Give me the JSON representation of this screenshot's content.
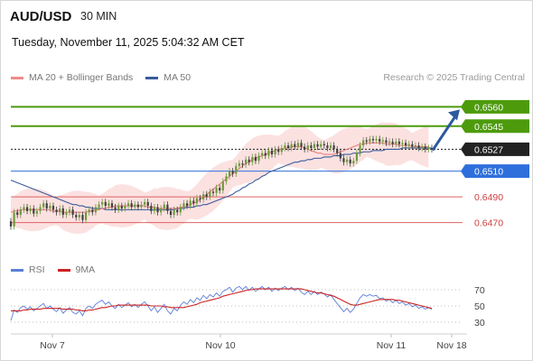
{
  "header": {
    "pair": "AUD/USD",
    "timeframe": "30 MIN",
    "datetime": "Tuesday, November 11, 2025 5:04:32 AM CET"
  },
  "legend": {
    "ma_bb": "MA 20 + Bollinger Bands",
    "ma50": "MA 50",
    "research": "Research © 2025 Trading Central"
  },
  "colors": {
    "resistance": "#4d9b0d",
    "support": "#2f6fdc",
    "minor": "#e06060",
    "current": "#222222",
    "bb_fill": "#fbdcdc",
    "ma20": "#e98080",
    "ma50": "#3a5b9c",
    "bull": "#6c9b3a",
    "bear": "#3f3f3f",
    "rsi": "#5b7fd8",
    "rsi_ma": "#cc2222",
    "arrow": "#2c5aa0"
  },
  "chart_data": [
    {
      "type": "candlestick",
      "ylim": [
        0.6455,
        0.6575
      ],
      "x_ticks": [
        "Nov 7",
        "Nov 10",
        "Nov 11",
        "Nov 18"
      ],
      "levels": [
        {
          "value": 0.656,
          "label": "0.6560",
          "kind": "resistance"
        },
        {
          "value": 0.6545,
          "label": "0.6545",
          "kind": "resistance"
        },
        {
          "value": 0.6527,
          "label": "0.6527",
          "kind": "current"
        },
        {
          "value": 0.651,
          "label": "0.6510",
          "kind": "support"
        },
        {
          "value": 0.649,
          "label": "0.6490",
          "kind": "minor"
        },
        {
          "value": 0.647,
          "label": "0.6470",
          "kind": "minor"
        }
      ],
      "close": [
        0.6467,
        0.6478,
        0.6476,
        0.648,
        0.6482,
        0.6479,
        0.6481,
        0.6477,
        0.6479,
        0.6482,
        0.6485,
        0.6481,
        0.6483,
        0.648,
        0.6478,
        0.6481,
        0.6476,
        0.6478,
        0.648,
        0.6476,
        0.6474,
        0.6476,
        0.6472,
        0.6478,
        0.648,
        0.6478,
        0.6482,
        0.6484,
        0.6486,
        0.6483,
        0.6485,
        0.6482,
        0.648,
        0.6483,
        0.6481,
        0.6483,
        0.6485,
        0.6482,
        0.6484,
        0.6482,
        0.6484,
        0.6486,
        0.6483,
        0.6479,
        0.6482,
        0.6478,
        0.6481,
        0.6484,
        0.6479,
        0.6476,
        0.648,
        0.6478,
        0.6482,
        0.6485,
        0.6483,
        0.6487,
        0.6485,
        0.6489,
        0.6488,
        0.6492,
        0.649,
        0.6494,
        0.6493,
        0.6497,
        0.6495,
        0.6502,
        0.6506,
        0.651,
        0.6508,
        0.6514,
        0.6516,
        0.6515,
        0.6519,
        0.6517,
        0.6521,
        0.6518,
        0.6522,
        0.6524,
        0.6522,
        0.6526,
        0.6523,
        0.6527,
        0.6525,
        0.6528,
        0.653,
        0.6528,
        0.6531,
        0.6529,
        0.6532,
        0.6529,
        0.6527,
        0.653,
        0.6528,
        0.6531,
        0.6529,
        0.6531,
        0.653,
        0.6528,
        0.653,
        0.6527,
        0.6524,
        0.652,
        0.6517,
        0.6519,
        0.6516,
        0.6518,
        0.6524,
        0.653,
        0.6534,
        0.6533,
        0.6535,
        0.6534,
        0.6535,
        0.6533,
        0.6534,
        0.6532,
        0.6533,
        0.6531,
        0.6533,
        0.6531,
        0.6532,
        0.653,
        0.6531,
        0.6529,
        0.653,
        0.6528,
        0.6529,
        0.6527,
        0.6528,
        0.6527
      ],
      "ma20": [
        0.6478,
        0.6479,
        0.6479,
        0.648,
        0.648,
        0.648,
        0.648,
        0.648,
        0.648,
        0.648,
        0.648,
        0.648,
        0.648,
        0.6479,
        0.6479,
        0.6479,
        0.6478,
        0.6478,
        0.6478,
        0.6478,
        0.6478,
        0.6478,
        0.6478,
        0.6478,
        0.6479,
        0.6479,
        0.648,
        0.648,
        0.6481,
        0.6481,
        0.6482,
        0.6482,
        0.6483,
        0.6483,
        0.6483,
        0.6483,
        0.6483,
        0.6483,
        0.6483,
        0.6483,
        0.6483,
        0.6483,
        0.6482,
        0.6482,
        0.6482,
        0.6481,
        0.6481,
        0.6481,
        0.6481,
        0.6481,
        0.6481,
        0.6481,
        0.6482,
        0.6482,
        0.6483,
        0.6484,
        0.6485,
        0.6486,
        0.6488,
        0.649,
        0.6492,
        0.6494,
        0.6496,
        0.6498,
        0.65,
        0.6502,
        0.6504,
        0.6506,
        0.6508,
        0.651,
        0.6512,
        0.6514,
        0.6516,
        0.6517,
        0.6519,
        0.652,
        0.6521,
        0.6522,
        0.6523,
        0.6524,
        0.6525,
        0.6526,
        0.6527,
        0.6527,
        0.6528,
        0.6528,
        0.6529,
        0.6529,
        0.6529,
        0.6529,
        0.6528,
        0.6527,
        0.6526,
        0.6525,
        0.6524,
        0.6524,
        0.6523,
        0.6523,
        0.6523,
        0.6523,
        0.6524,
        0.6525,
        0.6526,
        0.6527,
        0.6528,
        0.6529,
        0.653,
        0.6531,
        0.6531,
        0.6532,
        0.6532,
        0.6532,
        0.6532,
        0.6532,
        0.6532,
        0.6531,
        0.6531,
        0.6531,
        0.6531,
        0.653,
        0.653,
        0.653,
        0.653,
        0.6529,
        0.6529,
        0.6529,
        0.6529,
        0.6529,
        0.6529
      ],
      "ma50": [
        0.6503,
        0.6502,
        0.6501,
        0.65,
        0.6499,
        0.6498,
        0.6497,
        0.6496,
        0.6495,
        0.6494,
        0.6493,
        0.6492,
        0.6491,
        0.649,
        0.6489,
        0.6488,
        0.6487,
        0.6486,
        0.6485,
        0.6484,
        0.6484,
        0.6483,
        0.6483,
        0.6482,
        0.6482,
        0.6481,
        0.6481,
        0.6481,
        0.6481,
        0.648,
        0.648,
        0.648,
        0.648,
        0.648,
        0.648,
        0.648,
        0.648,
        0.648,
        0.648,
        0.648,
        0.648,
        0.648,
        0.648,
        0.648,
        0.648,
        0.648,
        0.648,
        0.648,
        0.648,
        0.648,
        0.648,
        0.6481,
        0.6481,
        0.6481,
        0.6482,
        0.6482,
        0.6482,
        0.6483,
        0.6483,
        0.6484,
        0.6484,
        0.6485,
        0.6486,
        0.6487,
        0.6488,
        0.6489,
        0.649,
        0.6491,
        0.6492,
        0.6494,
        0.6495,
        0.6497,
        0.6498,
        0.65,
        0.6501,
        0.6503,
        0.6504,
        0.6506,
        0.6507,
        0.6509,
        0.651,
        0.6511,
        0.6512,
        0.6513,
        0.6514,
        0.6515,
        0.6516,
        0.6517,
        0.6517,
        0.6518,
        0.6518,
        0.6519,
        0.6519,
        0.652,
        0.652,
        0.652,
        0.6521,
        0.6521,
        0.6521,
        0.6522,
        0.6522,
        0.6522,
        0.6523,
        0.6523,
        0.6523,
        0.6524,
        0.6524,
        0.6524,
        0.6525,
        0.6525,
        0.6525,
        0.6526,
        0.6526,
        0.6526,
        0.6526,
        0.6527,
        0.6527,
        0.6527,
        0.6527,
        0.6527,
        0.6528,
        0.6528,
        0.6528,
        0.6528,
        0.6528,
        0.6528,
        0.6528,
        0.6528,
        0.6528,
        0.6528
      ],
      "bb_width": 0.0014,
      "projection": {
        "from": 0.6527,
        "to": 0.656
      }
    },
    {
      "type": "line",
      "series": [
        {
          "name": "RSI",
          "values": [
            32,
            45,
            42,
            48,
            50,
            46,
            49,
            44,
            47,
            50,
            53,
            47,
            50,
            46,
            43,
            48,
            41,
            45,
            48,
            42,
            40,
            44,
            38,
            47,
            50,
            47,
            52,
            55,
            57,
            52,
            55,
            50,
            47,
            52,
            48,
            51,
            54,
            49,
            52,
            48,
            52,
            55,
            50,
            44,
            49,
            42,
            47,
            52,
            44,
            40,
            47,
            44,
            51,
            55,
            52,
            58,
            54,
            60,
            57,
            63,
            59,
            64,
            61,
            66,
            62,
            68,
            70,
            73,
            67,
            72,
            74,
            70,
            74,
            69,
            73,
            68,
            71,
            74,
            70,
            73,
            68,
            72,
            69,
            72,
            74,
            70,
            73,
            69,
            72,
            67,
            64,
            68,
            64,
            68,
            64,
            67,
            65,
            61,
            64,
            58,
            53,
            48,
            43,
            47,
            42,
            46,
            53,
            60,
            64,
            62,
            64,
            62,
            63,
            59,
            60,
            56,
            58,
            54,
            57,
            53,
            55,
            51,
            53,
            49,
            51,
            47,
            49,
            46,
            48,
            46
          ]
        },
        {
          "name": "9MA",
          "values": [
            44,
            44,
            44,
            44,
            45,
            45,
            46,
            46,
            46,
            46,
            47,
            47,
            47,
            47,
            47,
            47,
            46,
            46,
            46,
            46,
            45,
            45,
            44,
            44,
            45,
            45,
            46,
            47,
            48,
            48,
            49,
            50,
            50,
            51,
            51,
            51,
            51,
            51,
            51,
            51,
            51,
            51,
            51,
            50,
            50,
            50,
            50,
            49,
            49,
            48,
            48,
            48,
            48,
            48,
            49,
            50,
            51,
            52,
            54,
            55,
            56,
            57,
            58,
            59,
            60,
            62,
            63,
            64,
            65,
            66,
            67,
            68,
            69,
            70,
            70,
            71,
            71,
            71,
            71,
            71,
            71,
            71,
            71,
            71,
            71,
            71,
            71,
            71,
            71,
            71,
            70,
            69,
            68,
            67,
            66,
            66,
            65,
            64,
            63,
            62,
            60,
            58,
            56,
            54,
            52,
            51,
            51,
            52,
            53,
            54,
            55,
            56,
            57,
            58,
            58,
            58,
            58,
            58,
            57,
            57,
            56,
            55,
            54,
            53,
            52,
            51,
            50,
            49,
            48,
            47
          ]
        }
      ],
      "ylim": [
        20,
        80
      ],
      "y_ticks": [
        70,
        50,
        30
      ],
      "legend": [
        "RSI",
        "9MA"
      ]
    }
  ]
}
